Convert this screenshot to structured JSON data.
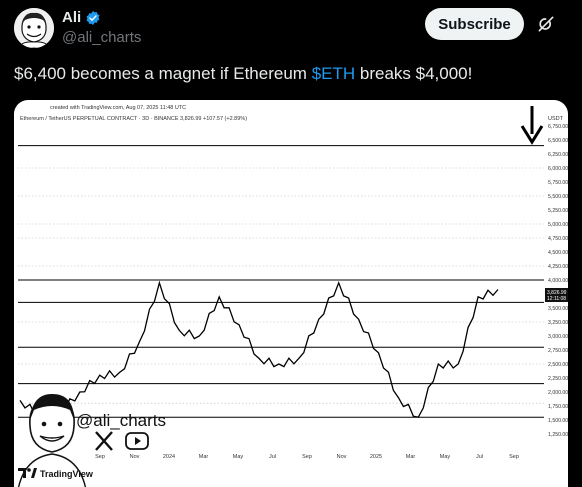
{
  "author": {
    "name": "Ali",
    "handle": "@ali_charts",
    "verified": true
  },
  "subscribe_label": "Subscribe",
  "grok_icon": "grok-icon",
  "tweet": {
    "text_before": "$6,400 becomes a magnet if Ethereum ",
    "cashtag": "$ETH",
    "text_after": " breaks $4,000!"
  },
  "chart": {
    "created_text": "created with TradingView.com, Aug 07, 2025 11:48 UTC",
    "symbol_text": "Ethereum / TetherUS PERPETUAL CONTRACT · 3D · BINANCE  3,826.99  +107.57 (+2.89%)",
    "currency": "USDT",
    "y_ticks": [
      "6,750.00",
      "6,500.00",
      "6,250.00",
      "6,000.00",
      "5,750.00",
      "5,500.00",
      "5,250.00",
      "5,000.00",
      "4,750.00",
      "4,500.00",
      "4,250.00",
      "4,000.00",
      "3,750.00",
      "3,500.00",
      "3,250.00",
      "3,000.00",
      "2,750.00",
      "2,500.00",
      "2,250.00",
      "2,000.00",
      "1,750.00",
      "1,500.00",
      "1,250.00"
    ],
    "last_price": "3,826.99",
    "last_time": "12:11:08",
    "x_ticks": [
      "Sep",
      "Nov",
      "2024",
      "Mar",
      "May",
      "Jul",
      "Sep",
      "Nov",
      "2025",
      "Mar",
      "May",
      "Jul",
      "Sep"
    ],
    "watermark_handle": "@ali_charts",
    "footer_brand": "TradingView",
    "line_color": "#000000",
    "level_color": "#000000"
  },
  "chart_data": {
    "type": "line",
    "x": [
      "2023-08",
      "2023-09",
      "2023-10",
      "2023-11",
      "2023-12",
      "2024-01",
      "2024-02",
      "2024-03",
      "2024-04",
      "2024-05",
      "2024-06",
      "2024-07",
      "2024-08",
      "2024-09",
      "2024-10",
      "2024-11",
      "2024-12",
      "2025-01",
      "2025-02",
      "2025-03",
      "2025-04",
      "2025-05",
      "2025-06",
      "2025-07",
      "2025-08"
    ],
    "series": [
      {
        "values": [
          1850,
          1600,
          1650,
          2000,
          2300,
          2350,
          2900,
          3950,
          3100,
          3000,
          3700,
          3200,
          2600,
          2500,
          2600,
          3300,
          3950,
          3300,
          2700,
          1900,
          1550,
          2500,
          2500,
          3700,
          3830
        ]
      }
    ],
    "horizontal_levels": [
      6400,
      4000,
      3600,
      2800,
      2150,
      1550
    ],
    "ylim": [
      1250,
      6750
    ],
    "grid": false,
    "legend": "none"
  }
}
